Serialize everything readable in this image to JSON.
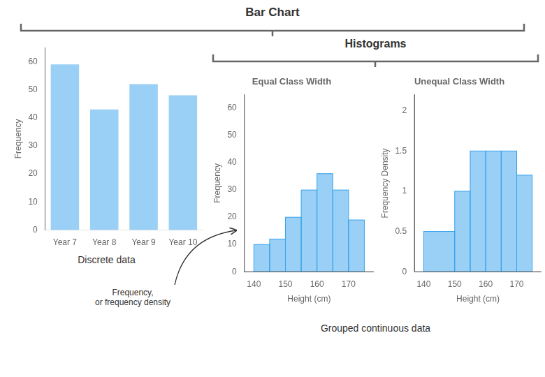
{
  "title": "Bar Chart",
  "annotations": [
    "Histograms",
    "Discrete data",
    "Frequency,\nor frequency density",
    "Grouped continuous data"
  ],
  "chart_data": [
    {
      "type": "bar",
      "categories": [
        "Year 7",
        "Year 8",
        "Year 9",
        "Year 10"
      ],
      "values": [
        59,
        43,
        52,
        48
      ],
      "ylabel": "Frequency",
      "ylim": [
        0,
        65
      ],
      "yticks": [
        0,
        10,
        20,
        30,
        40,
        50,
        60
      ],
      "grid": false
    },
    {
      "type": "histogram",
      "title": "Equal Class Width",
      "bins": [
        140,
        145,
        150,
        155,
        160,
        165,
        170,
        175
      ],
      "values": [
        10,
        12,
        20,
        30,
        36,
        30,
        19
      ],
      "xlabel": "Height (cm)",
      "ylabel": "Frequency",
      "xlim": [
        137,
        178
      ],
      "xticks": [
        140,
        150,
        160,
        170
      ],
      "ylim": [
        0,
        65
      ],
      "yticks": [
        0,
        10,
        20,
        30,
        40,
        50,
        60
      ],
      "grid": false
    },
    {
      "type": "histogram",
      "title": "Unequal Class Width",
      "bins": [
        140,
        150,
        155,
        160,
        165,
        170,
        175
      ],
      "values": [
        0.5,
        1.0,
        1.5,
        1.5,
        1.5,
        1.2
      ],
      "xlabel": "Height (cm)",
      "ylabel": "Frequency Density",
      "xlim": [
        137,
        178
      ],
      "xticks": [
        140,
        150,
        160,
        170
      ],
      "ylim": [
        0,
        2.2
      ],
      "yticks": [
        0,
        0.5,
        1,
        1.5,
        2
      ],
      "grid": false
    }
  ]
}
